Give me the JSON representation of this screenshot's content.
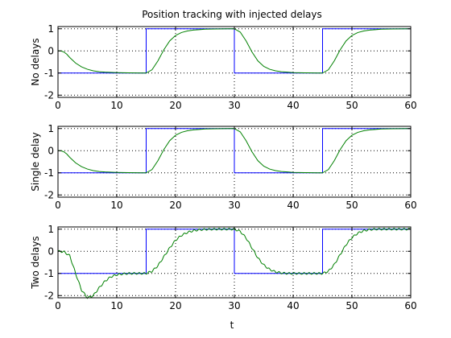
{
  "title": "Position tracking with injected delays",
  "xlabel": "t",
  "colors": {
    "reference": "#0000ff",
    "response": "#008000",
    "axes": "#000000",
    "grid": "#000000"
  },
  "chart_data": [
    {
      "type": "line",
      "ylabel": "No delays",
      "xlim": [
        0,
        60
      ],
      "ylim": [
        -2.1,
        1.1
      ],
      "xticks": [
        0,
        10,
        20,
        30,
        40,
        50,
        60
      ],
      "yticks": [
        -2,
        -1,
        0,
        1
      ],
      "grid": true,
      "series": [
        {
          "role": "reference",
          "color": "#0000ff",
          "step": true,
          "x": [
            0,
            15,
            15,
            30,
            30,
            45,
            45,
            60
          ],
          "y": [
            -1,
            -1,
            1,
            1,
            -1,
            -1,
            1,
            1
          ]
        },
        {
          "role": "response",
          "color": "#008000",
          "x": [
            0,
            0.5,
            1,
            1.5,
            2,
            3,
            4,
            5,
            6,
            7,
            8,
            10,
            12,
            14,
            15,
            16,
            17,
            18,
            19,
            20,
            21,
            22,
            23,
            24,
            25,
            27,
            29,
            30,
            31,
            32,
            33,
            34,
            35,
            36,
            37,
            38,
            39,
            40,
            42,
            44,
            45,
            46,
            47,
            48,
            49,
            50,
            51,
            52,
            53,
            54,
            55,
            57,
            60
          ],
          "y": [
            0,
            0.0,
            -0.05,
            -0.15,
            -0.3,
            -0.55,
            -0.72,
            -0.83,
            -0.9,
            -0.94,
            -0.96,
            -0.98,
            -0.99,
            -1.0,
            -1.0,
            -0.85,
            -0.45,
            0.05,
            0.45,
            0.7,
            0.83,
            0.9,
            0.94,
            0.96,
            0.98,
            0.99,
            1.0,
            1.0,
            0.85,
            0.45,
            -0.05,
            -0.45,
            -0.7,
            -0.83,
            -0.9,
            -0.94,
            -0.96,
            -0.98,
            -0.99,
            -1.0,
            -1.0,
            -0.85,
            -0.45,
            0.05,
            0.45,
            0.7,
            0.83,
            0.9,
            0.94,
            0.96,
            0.98,
            0.99,
            1.0
          ]
        }
      ]
    },
    {
      "type": "line",
      "ylabel": "Single delay",
      "xlim": [
        0,
        60
      ],
      "ylim": [
        -2.1,
        1.1
      ],
      "xticks": [
        0,
        10,
        20,
        30,
        40,
        50,
        60
      ],
      "yticks": [
        -2,
        -1,
        0,
        1
      ],
      "grid": true,
      "series": [
        {
          "role": "reference",
          "color": "#0000ff",
          "step": true,
          "x": [
            0,
            15,
            15,
            30,
            30,
            45,
            45,
            60
          ],
          "y": [
            -1,
            -1,
            1,
            1,
            -1,
            -1,
            1,
            1
          ]
        },
        {
          "role": "response",
          "color": "#008000",
          "x": [
            0,
            0.5,
            1,
            1.5,
            2,
            3,
            4,
            5,
            6,
            7,
            8,
            10,
            12,
            14,
            15,
            16,
            17,
            18,
            19,
            20,
            21,
            22,
            23,
            24,
            25,
            27,
            29,
            30,
            31,
            32,
            33,
            34,
            35,
            36,
            37,
            38,
            39,
            40,
            42,
            44,
            45,
            46,
            47,
            48,
            49,
            50,
            51,
            52,
            53,
            54,
            55,
            57,
            60
          ],
          "y": [
            0,
            0.0,
            -0.05,
            -0.15,
            -0.3,
            -0.55,
            -0.72,
            -0.83,
            -0.9,
            -0.94,
            -0.96,
            -0.98,
            -0.99,
            -1.0,
            -1.0,
            -0.85,
            -0.45,
            0.05,
            0.45,
            0.7,
            0.83,
            0.9,
            0.94,
            0.96,
            0.98,
            0.99,
            1.0,
            1.0,
            0.85,
            0.45,
            -0.05,
            -0.45,
            -0.7,
            -0.83,
            -0.9,
            -0.94,
            -0.96,
            -0.98,
            -0.99,
            -1.0,
            -1.0,
            -0.85,
            -0.45,
            0.05,
            0.45,
            0.7,
            0.83,
            0.9,
            0.94,
            0.96,
            0.98,
            0.99,
            1.0
          ]
        }
      ]
    },
    {
      "type": "line",
      "ylabel": "Two delays",
      "xlim": [
        0,
        60
      ],
      "ylim": [
        -2.1,
        1.1
      ],
      "xticks": [
        0,
        10,
        20,
        30,
        40,
        50,
        60
      ],
      "yticks": [
        -2,
        -1,
        0,
        1
      ],
      "grid": true,
      "series": [
        {
          "role": "reference",
          "color": "#0000ff",
          "step": true,
          "x": [
            0,
            15,
            15,
            30,
            30,
            45,
            45,
            60
          ],
          "y": [
            -1,
            -1,
            1,
            1,
            -1,
            -1,
            1,
            1
          ]
        },
        {
          "role": "response",
          "color": "#008000",
          "ripple": 0.04,
          "x": [
            0,
            1,
            2,
            3,
            4,
            5,
            6,
            7,
            8,
            9,
            10,
            11,
            12,
            13,
            14,
            15,
            16,
            17,
            18,
            19,
            20,
            21,
            22,
            23,
            24,
            25,
            27,
            29,
            30,
            31,
            32,
            33,
            34,
            35,
            36,
            37,
            38,
            39,
            40,
            42,
            44,
            45,
            46,
            47,
            48,
            49,
            50,
            51,
            52,
            53,
            54,
            55,
            57,
            60
          ],
          "y": [
            0,
            -0.02,
            -0.2,
            -1.0,
            -1.75,
            -2.1,
            -2.0,
            -1.65,
            -1.35,
            -1.15,
            -1.06,
            -1.02,
            -1.0,
            -1.0,
            -1.0,
            -1.0,
            -0.9,
            -0.65,
            -0.25,
            0.15,
            0.5,
            0.72,
            0.85,
            0.93,
            0.97,
            0.99,
            1.0,
            1.0,
            1.0,
            0.9,
            0.6,
            0.15,
            -0.3,
            -0.62,
            -0.82,
            -0.93,
            -0.98,
            -1.0,
            -1.0,
            -1.0,
            -1.0,
            -1.0,
            -0.9,
            -0.6,
            -0.15,
            0.3,
            0.62,
            0.82,
            0.93,
            0.98,
            1.0,
            1.0,
            1.0,
            1.0
          ]
        }
      ]
    }
  ]
}
